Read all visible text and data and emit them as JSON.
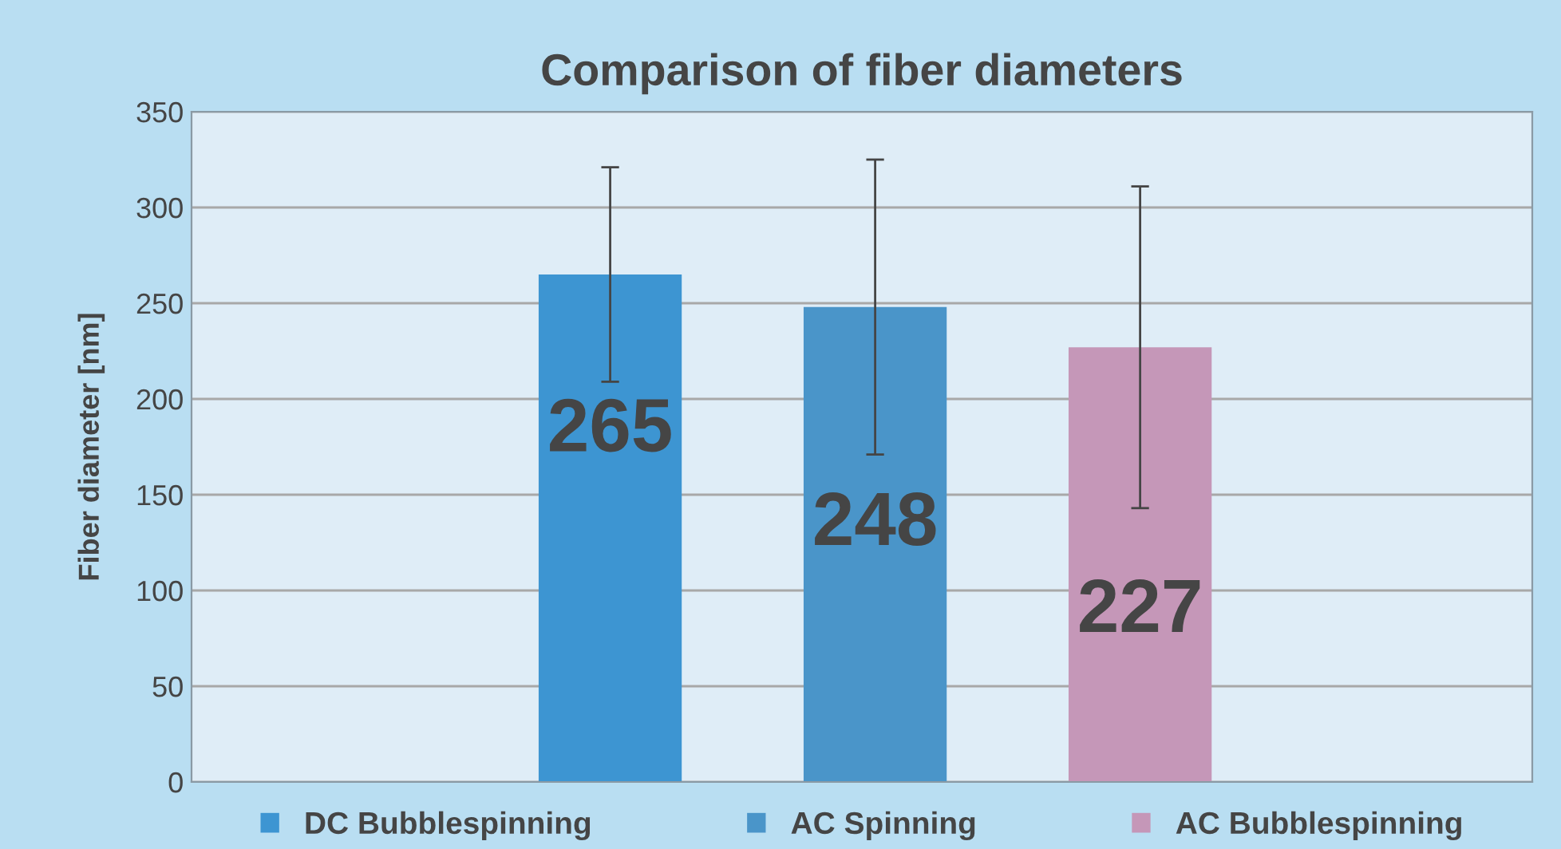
{
  "chart_data": {
    "type": "bar",
    "title": "Comparison of fiber diameters",
    "ylabel": "Fiber diameter [nm]",
    "categories": [
      null
    ],
    "series": [
      {
        "name": "DC Bubblespinning",
        "color": "#3d95d2",
        "values": [
          265
        ],
        "errors": [
          56
        ]
      },
      {
        "name": "AC Spinning",
        "color": "#4a95c9",
        "values": [
          248
        ],
        "errors": [
          77
        ]
      },
      {
        "name": "AC Bubblespinning",
        "color": "#c597b8",
        "values": [
          227
        ],
        "errors": [
          84
        ]
      }
    ],
    "ylim": [
      0,
      350
    ],
    "yticks": [
      0,
      50,
      100,
      150,
      200,
      250,
      300,
      350
    ],
    "grid": "y",
    "legend": "bottom",
    "data_labels": true
  }
}
